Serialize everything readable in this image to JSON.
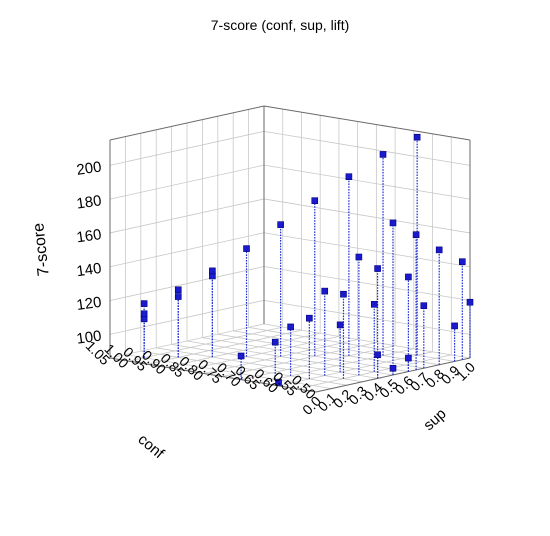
{
  "chart_data": {
    "type": "scatter3d",
    "title": "7-score (conf, sup, lift)",
    "xlabel": "conf",
    "ylabel": "sup",
    "zlabel": "7-score",
    "x_ticks": [
      "1.05",
      "1.00",
      "0.95",
      "0.90",
      "0.85",
      "0.80",
      "0.75",
      "0.70",
      "0.65",
      "0.60",
      "0.55",
      "0.50"
    ],
    "y_ticks": [
      "0.0",
      "0.1",
      "0.2",
      "0.3",
      "0.4",
      "0.5",
      "0.6",
      "0.7",
      "0.8",
      "0.9",
      "1.0"
    ],
    "z_ticks": [
      "100",
      "120",
      "140",
      "160",
      "180",
      "200"
    ],
    "xlim": [
      0.5,
      1.05
    ],
    "ylim": [
      0.0,
      1.0
    ],
    "zlim": [
      86,
      215
    ],
    "grid": true,
    "drop_lines": true,
    "points": [
      {
        "conf": 1.0,
        "sup": 0.1,
        "score": 109
      },
      {
        "conf": 1.0,
        "sup": 0.1,
        "score": 112
      },
      {
        "conf": 1.0,
        "sup": 0.1,
        "score": 118
      },
      {
        "conf": 0.95,
        "sup": 0.2,
        "score": 122
      },
      {
        "conf": 0.95,
        "sup": 0.2,
        "score": 126
      },
      {
        "conf": 0.9,
        "sup": 0.3,
        "score": 134
      },
      {
        "conf": 0.9,
        "sup": 0.3,
        "score": 137
      },
      {
        "conf": 0.85,
        "sup": 0.4,
        "score": 150
      },
      {
        "conf": 0.8,
        "sup": 0.5,
        "score": 164
      },
      {
        "conf": 0.75,
        "sup": 0.6,
        "score": 178
      },
      {
        "conf": 0.7,
        "sup": 0.7,
        "score": 192
      },
      {
        "conf": 0.65,
        "sup": 0.8,
        "score": 205
      },
      {
        "conf": 0.6,
        "sup": 0.9,
        "score": 215
      },
      {
        "conf": 0.65,
        "sup": 0.2,
        "score": 115
      },
      {
        "conf": 0.6,
        "sup": 0.3,
        "score": 136
      },
      {
        "conf": 0.55,
        "sup": 0.4,
        "score": 156
      },
      {
        "conf": 0.5,
        "sup": 0.5,
        "score": 176
      },
      {
        "conf": 0.7,
        "sup": 0.0,
        "score": 100
      },
      {
        "conf": 0.65,
        "sup": 0.1,
        "score": 108
      },
      {
        "conf": 0.6,
        "sup": 0.2,
        "score": 122
      },
      {
        "conf": 0.55,
        "sup": 0.3,
        "score": 136
      },
      {
        "conf": 0.5,
        "sup": 0.4,
        "score": 151
      },
      {
        "conf": 0.5,
        "sup": 0.65,
        "score": 166
      },
      {
        "conf": 0.6,
        "sup": 0.0,
        "score": 88
      },
      {
        "conf": 0.6,
        "sup": 0.4,
        "score": 114
      },
      {
        "conf": 0.55,
        "sup": 0.5,
        "score": 126
      },
      {
        "conf": 0.5,
        "sup": 0.6,
        "score": 142
      },
      {
        "conf": 0.5,
        "sup": 0.8,
        "score": 154
      },
      {
        "conf": 0.5,
        "sup": 0.7,
        "score": 123
      },
      {
        "conf": 0.5,
        "sup": 0.95,
        "score": 144
      },
      {
        "conf": 0.5,
        "sup": 0.4,
        "score": 100
      },
      {
        "conf": 0.5,
        "sup": 0.9,
        "score": 107
      },
      {
        "conf": 0.5,
        "sup": 1.0,
        "score": 119
      },
      {
        "conf": 0.5,
        "sup": 0.5,
        "score": 90
      },
      {
        "conf": 0.5,
        "sup": 0.6,
        "score": 94
      }
    ]
  }
}
